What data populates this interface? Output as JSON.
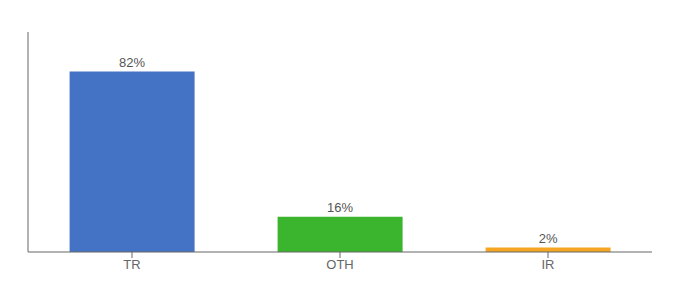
{
  "chart_data": {
    "type": "bar",
    "categories": [
      "TR",
      "OTH",
      "IR"
    ],
    "values": [
      82,
      16,
      2
    ],
    "value_labels": [
      "82%",
      "16%",
      "2%"
    ],
    "colors": [
      "#4472c4",
      "#3cb52e",
      "#f5a623"
    ],
    "ylim": [
      0,
      100
    ],
    "data_labels": true,
    "tick_labels": "x",
    "grid": false
  }
}
